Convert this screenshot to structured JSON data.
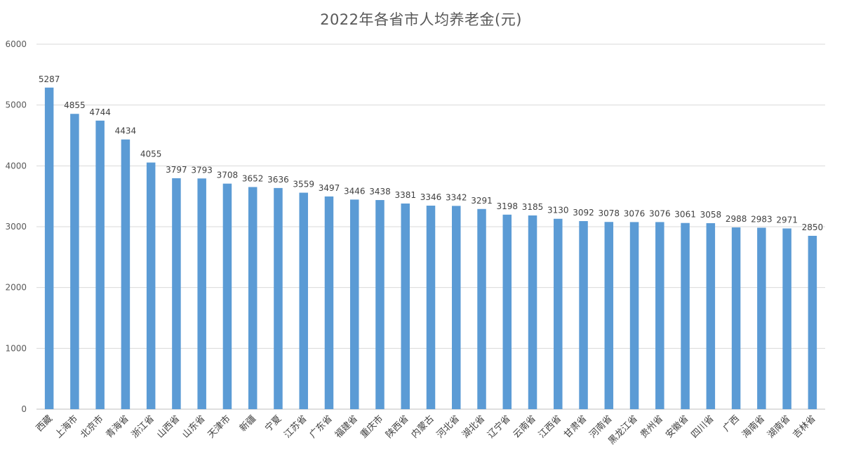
{
  "chart_data": {
    "type": "bar",
    "title": "2022年各省市人均养老金(元)",
    "xlabel": "",
    "ylabel": "",
    "ylim": [
      0,
      6000
    ],
    "yticks": [
      0,
      1000,
      2000,
      3000,
      4000,
      5000,
      6000
    ],
    "grid": true,
    "legend": "none",
    "bar_color": "#5b9bd5",
    "categories": [
      "西藏",
      "上海市",
      "北京市",
      "青海省",
      "浙江省",
      "山西省",
      "山东省",
      "天津市",
      "新疆",
      "宁夏",
      "江苏省",
      "广东省",
      "福建省",
      "重庆市",
      "陕西省",
      "内蒙古",
      "河北省",
      "湖北省",
      "辽宁省",
      "云南省",
      "江西省",
      "甘肃省",
      "河南省",
      "黑龙江省",
      "贵州省",
      "安徽省",
      "四川省",
      "广西",
      "海南省",
      "湖南省",
      "吉林省"
    ],
    "values": [
      5287,
      4855,
      4744,
      4434,
      4055,
      3797,
      3793,
      3708,
      3652,
      3636,
      3559,
      3497,
      3446,
      3438,
      3381,
      3346,
      3342,
      3291,
      3198,
      3185,
      3130,
      3092,
      3078,
      3076,
      3076,
      3061,
      3058,
      2988,
      2983,
      2971,
      2850
    ]
  }
}
